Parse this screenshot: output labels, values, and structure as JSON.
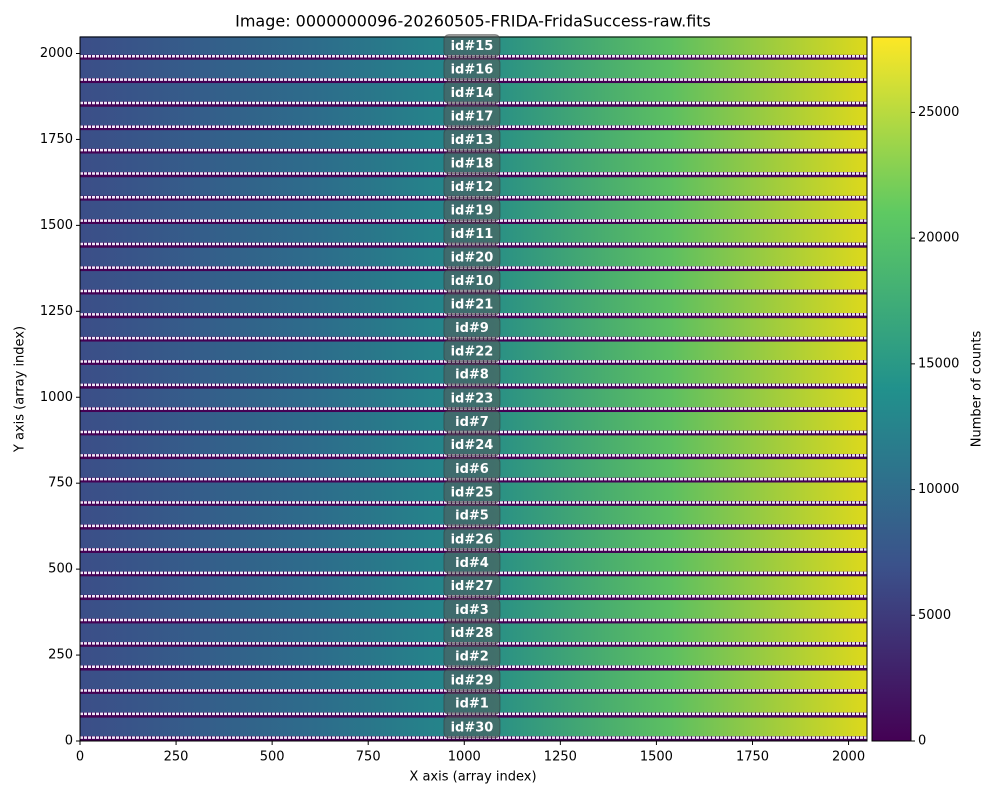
{
  "chart_data": {
    "type": "image",
    "title": "Image: 0000000096-20260505-FRIDA-FridaSuccess-raw.fits",
    "x_label": "X axis (array index)",
    "y_label": "Y axis (array index)",
    "xlim": [
      0,
      2048
    ],
    "ylim": [
      0,
      2048
    ],
    "xticks": [
      0,
      250,
      500,
      750,
      1000,
      1250,
      1500,
      1750,
      2000
    ],
    "yticks": [
      0,
      250,
      500,
      750,
      1000,
      1250,
      1500,
      1750,
      2000
    ],
    "colorbar": {
      "label": "Number of counts",
      "lim": [
        0,
        28000
      ],
      "ticks": [
        0,
        5000,
        10000,
        15000,
        20000,
        25000
      ],
      "colormap": "viridis"
    },
    "annotations": [
      {
        "text": "id#15",
        "x": 1020,
        "y": 2023
      },
      {
        "text": "id#16",
        "x": 1020,
        "y": 1955
      },
      {
        "text": "id#14",
        "x": 1020,
        "y": 1887
      },
      {
        "text": "id#17",
        "x": 1020,
        "y": 1818
      },
      {
        "text": "id#13",
        "x": 1020,
        "y": 1750
      },
      {
        "text": "id#18",
        "x": 1020,
        "y": 1682
      },
      {
        "text": "id#12",
        "x": 1020,
        "y": 1613
      },
      {
        "text": "id#19",
        "x": 1020,
        "y": 1545
      },
      {
        "text": "id#11",
        "x": 1020,
        "y": 1477
      },
      {
        "text": "id#20",
        "x": 1020,
        "y": 1408
      },
      {
        "text": "id#10",
        "x": 1020,
        "y": 1340
      },
      {
        "text": "id#21",
        "x": 1020,
        "y": 1272
      },
      {
        "text": "id#9",
        "x": 1020,
        "y": 1203
      },
      {
        "text": "id#22",
        "x": 1020,
        "y": 1135
      },
      {
        "text": "id#8",
        "x": 1020,
        "y": 1067
      },
      {
        "text": "id#23",
        "x": 1020,
        "y": 998
      },
      {
        "text": "id#7",
        "x": 1020,
        "y": 930
      },
      {
        "text": "id#24",
        "x": 1020,
        "y": 862
      },
      {
        "text": "id#6",
        "x": 1020,
        "y": 793
      },
      {
        "text": "id#25",
        "x": 1020,
        "y": 725
      },
      {
        "text": "id#5",
        "x": 1020,
        "y": 657
      },
      {
        "text": "id#26",
        "x": 1020,
        "y": 588
      },
      {
        "text": "id#4",
        "x": 1020,
        "y": 520
      },
      {
        "text": "id#27",
        "x": 1020,
        "y": 452
      },
      {
        "text": "id#3",
        "x": 1020,
        "y": 383
      },
      {
        "text": "id#28",
        "x": 1020,
        "y": 315
      },
      {
        "text": "id#2",
        "x": 1020,
        "y": 247
      },
      {
        "text": "id#29",
        "x": 1020,
        "y": 178
      },
      {
        "text": "id#1",
        "x": 1020,
        "y": 110
      },
      {
        "text": "id#30",
        "x": 1020,
        "y": 41
      }
    ]
  }
}
